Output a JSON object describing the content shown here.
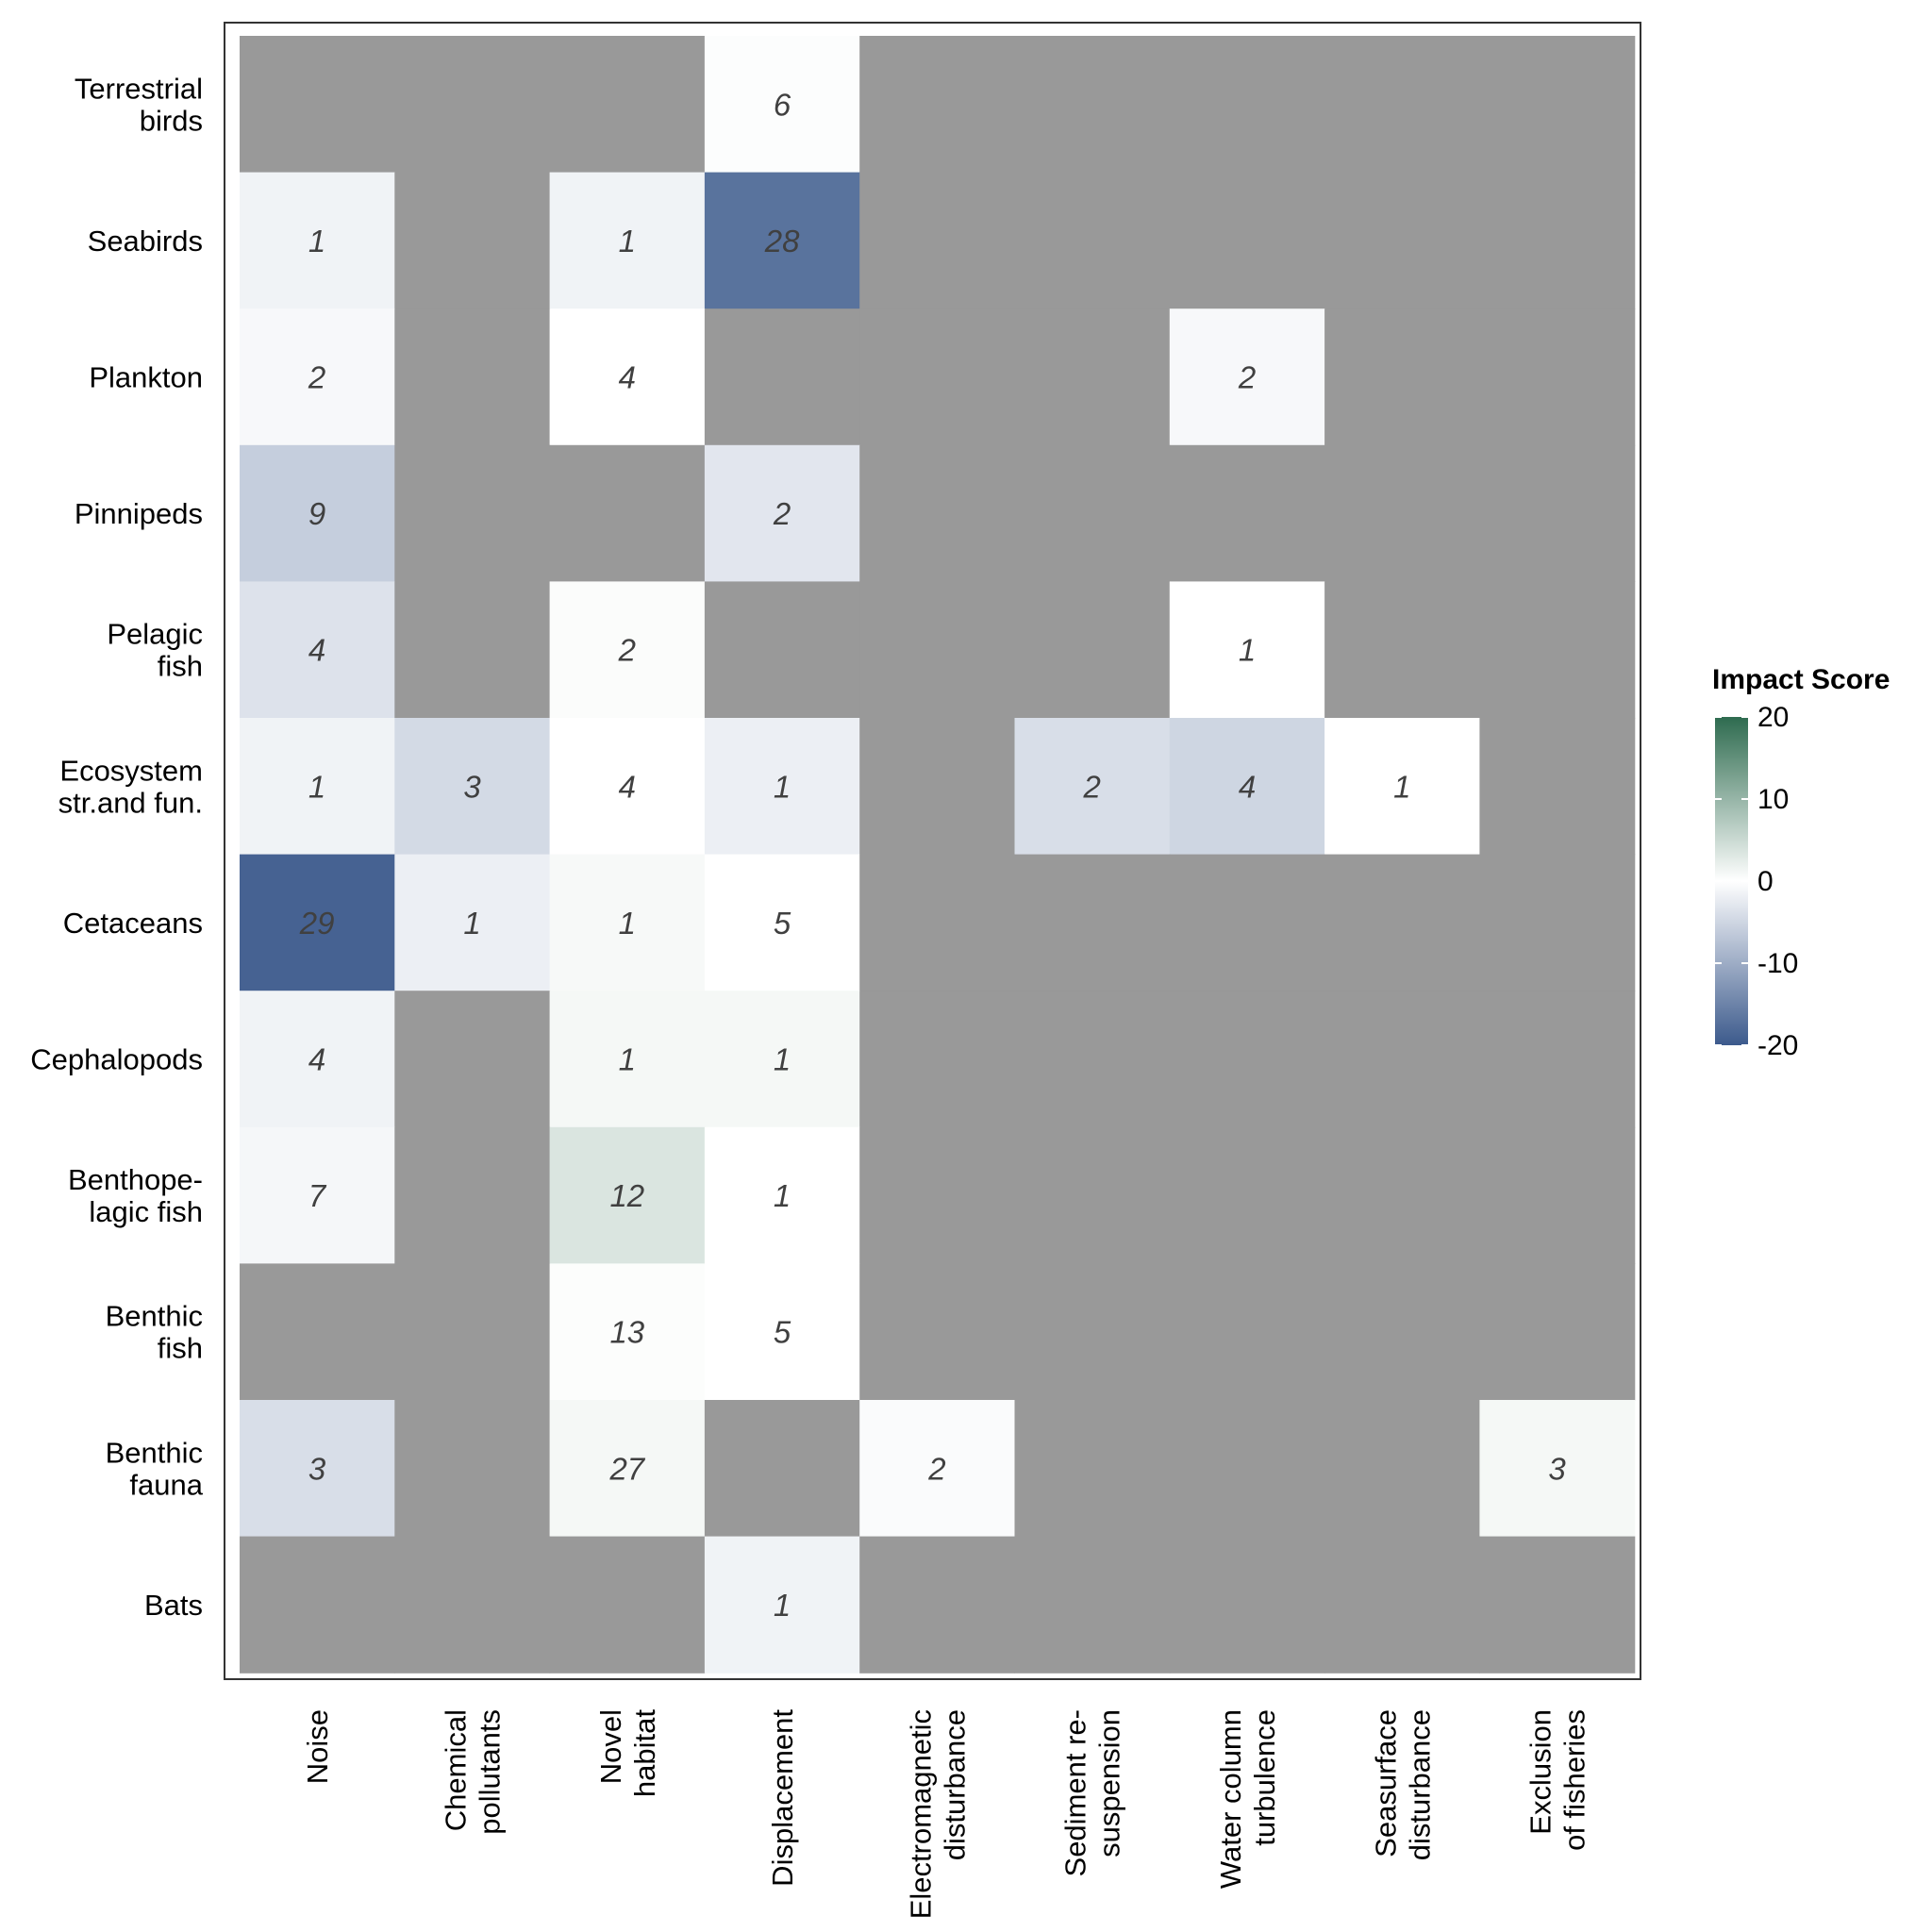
{
  "chart_data": {
    "type": "heatmap",
    "rows": [
      [
        "Terrestrial",
        "birds"
      ],
      [
        "Seabirds"
      ],
      [
        "Plankton"
      ],
      [
        "Pinnipeds"
      ],
      [
        "Pelagic",
        "fish"
      ],
      [
        "Ecosystem",
        "str.and fun."
      ],
      [
        "Cetaceans"
      ],
      [
        "Cephalopods"
      ],
      [
        "Benthope-",
        "lagic fish"
      ],
      [
        "Benthic",
        "fish"
      ],
      [
        "Benthic",
        "fauna"
      ],
      [
        "Bats"
      ]
    ],
    "columns": [
      [
        "Noise"
      ],
      [
        "Chemical",
        "pollutants"
      ],
      [
        "Novel",
        "habitat"
      ],
      [
        "Displacement"
      ],
      [
        "Electromagnetic",
        "disturbance"
      ],
      [
        "Sediment re-",
        "suspension"
      ],
      [
        "Water column",
        "turbulence"
      ],
      [
        "Seasurface",
        "disturbance"
      ],
      [
        "Exclusion",
        "of fisheries"
      ]
    ],
    "counts": [
      [
        null,
        null,
        null,
        "6",
        null,
        null,
        null,
        null,
        null
      ],
      [
        "1",
        null,
        "1",
        "28",
        null,
        null,
        null,
        null,
        null
      ],
      [
        "2",
        null,
        "4",
        null,
        null,
        null,
        "2",
        null,
        null
      ],
      [
        "9",
        null,
        null,
        "2",
        null,
        null,
        null,
        null,
        null
      ],
      [
        "4",
        null,
        "2",
        null,
        null,
        null,
        "1",
        null,
        null
      ],
      [
        "1",
        "3",
        "4",
        "1",
        null,
        "2",
        "4",
        "1",
        null
      ],
      [
        "29",
        "1",
        "1",
        "5",
        null,
        null,
        null,
        null,
        null
      ],
      [
        "4",
        null,
        "1",
        "1",
        null,
        null,
        null,
        null,
        null
      ],
      [
        "7",
        null,
        "12",
        "1",
        null,
        null,
        null,
        null,
        null
      ],
      [
        null,
        null,
        "13",
        "5",
        null,
        null,
        null,
        null,
        null
      ],
      [
        "3",
        null,
        "27",
        null,
        "2",
        null,
        null,
        null,
        "3"
      ],
      [
        null,
        null,
        null,
        "1",
        null,
        null,
        null,
        null,
        null
      ]
    ],
    "impact_score": [
      [
        null,
        null,
        null,
        -0.3,
        null,
        null,
        null,
        null,
        null
      ],
      [
        -1.5,
        null,
        -1.5,
        -17.0,
        null,
        null,
        null,
        null,
        null
      ],
      [
        -0.8,
        null,
        0.0,
        null,
        null,
        null,
        -0.8,
        null,
        null
      ],
      [
        -6.0,
        null,
        null,
        -3.0,
        null,
        null,
        null,
        null,
        null
      ],
      [
        -3.5,
        null,
        0.4,
        null,
        null,
        null,
        0.0,
        null,
        null
      ],
      [
        -1.5,
        -4.5,
        0.0,
        -2.0,
        null,
        -4.0,
        -5.0,
        0.0,
        null
      ],
      [
        -19.0,
        -2.0,
        0.8,
        0.0,
        null,
        null,
        null,
        null,
        null
      ],
      [
        -1.5,
        null,
        1.0,
        1.0,
        null,
        null,
        null,
        null,
        null
      ],
      [
        -1.0,
        null,
        3.5,
        0.0,
        null,
        null,
        null,
        null,
        null
      ],
      [
        null,
        null,
        0.3,
        0.0,
        null,
        null,
        null,
        null,
        null
      ],
      [
        -4.0,
        null,
        1.0,
        null,
        -0.5,
        null,
        null,
        null,
        1.0
      ],
      [
        null,
        null,
        null,
        -1.5,
        null,
        null,
        null,
        null,
        null
      ]
    ],
    "legend": {
      "title": "Impact Score",
      "ticks": [
        "20",
        "10",
        "0",
        "-10",
        "-20"
      ],
      "tick_values": [
        20,
        10,
        0,
        -10,
        -20
      ],
      "range": [
        -20,
        20
      ],
      "position": "right"
    },
    "colors": {
      "na": "#999999",
      "low": "#3c5a8c",
      "mid": "#ffffff",
      "high": "#2e6b4f",
      "frame": "#333333",
      "cell_text": "#404040"
    }
  }
}
